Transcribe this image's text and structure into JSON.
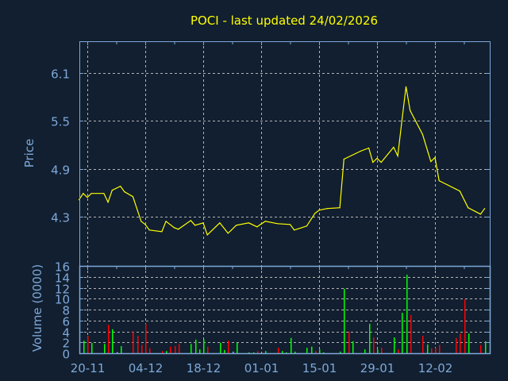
{
  "chart_data": [
    {
      "type": "line",
      "title": "POCI - last updated 24/02/2026",
      "xlabel": "",
      "ylabel": "Price",
      "ylim": [
        3.68,
        6.5
      ],
      "xlim": [
        "2025-11-18",
        "2026-02-25"
      ],
      "yticks": [
        "4.3",
        "4.9",
        "5.5",
        "6.1"
      ],
      "grid": true,
      "line_color": "#ffff00",
      "points": [
        [
          "2025-11-18",
          4.51
        ],
        [
          "2025-11-19",
          4.59
        ],
        [
          "2025-11-20",
          4.54
        ],
        [
          "2025-11-21",
          4.59
        ],
        [
          "2025-11-24",
          4.59
        ],
        [
          "2025-11-25",
          4.48
        ],
        [
          "2025-11-26",
          4.63
        ],
        [
          "2025-11-28",
          4.68
        ],
        [
          "2025-11-29",
          4.61
        ],
        [
          "2025-12-01",
          4.55
        ],
        [
          "2025-12-03",
          4.24
        ],
        [
          "2025-12-04",
          4.2
        ],
        [
          "2025-12-05",
          4.13
        ],
        [
          "2025-12-08",
          4.11
        ],
        [
          "2025-12-09",
          4.24
        ],
        [
          "2025-12-11",
          4.16
        ],
        [
          "2025-12-12",
          4.14
        ],
        [
          "2025-12-15",
          4.25
        ],
        [
          "2025-12-16",
          4.19
        ],
        [
          "2025-12-18",
          4.22
        ],
        [
          "2025-12-19",
          4.07
        ],
        [
          "2025-12-22",
          4.22
        ],
        [
          "2025-12-24",
          4.09
        ],
        [
          "2025-12-26",
          4.19
        ],
        [
          "2025-12-29",
          4.22
        ],
        [
          "2025-12-31",
          4.17
        ],
        [
          "2026-01-02",
          4.24
        ],
        [
          "2026-01-05",
          4.21
        ],
        [
          "2026-01-08",
          4.2
        ],
        [
          "2026-01-09",
          4.13
        ],
        [
          "2026-01-12",
          4.18
        ],
        [
          "2026-01-14",
          4.34
        ],
        [
          "2026-01-15",
          4.38
        ],
        [
          "2026-01-17",
          4.4
        ],
        [
          "2026-01-20",
          4.41
        ],
        [
          "2026-01-21",
          5.02
        ],
        [
          "2026-01-25",
          5.12
        ],
        [
          "2026-01-27",
          5.16
        ],
        [
          "2026-01-28",
          4.98
        ],
        [
          "2026-01-29",
          5.03
        ],
        [
          "2026-01-30",
          4.98
        ],
        [
          "2026-02-02",
          5.17
        ],
        [
          "2026-02-03",
          5.06
        ],
        [
          "2026-02-04",
          5.5
        ],
        [
          "2026-02-05",
          5.93
        ],
        [
          "2026-02-06",
          5.63
        ],
        [
          "2026-02-09",
          5.33
        ],
        [
          "2026-02-11",
          4.99
        ],
        [
          "2026-02-12",
          5.04
        ],
        [
          "2026-02-13",
          4.75
        ],
        [
          "2026-02-18",
          4.62
        ],
        [
          "2026-02-20",
          4.41
        ],
        [
          "2026-02-23",
          4.33
        ],
        [
          "2026-02-24",
          4.4
        ]
      ]
    },
    {
      "type": "bar",
      "xlabel": "",
      "ylabel": "Volume (0000)",
      "ylim": [
        0,
        16
      ],
      "yticks": [
        "0",
        "2",
        "4",
        "6",
        "8",
        "10",
        "12",
        "14",
        "16"
      ],
      "xticks": [
        {
          "date": "2025-11-20",
          "label": "20-11"
        },
        {
          "date": "2025-12-04",
          "label": "04-12"
        },
        {
          "date": "2025-12-18",
          "label": "18-12"
        },
        {
          "date": "2026-01-01",
          "label": "01-01"
        },
        {
          "date": "2026-01-15",
          "label": "15-01"
        },
        {
          "date": "2026-01-29",
          "label": "29-01"
        },
        {
          "date": "2026-02-12",
          "label": "12-02"
        }
      ],
      "grid": true,
      "colors": {
        "up": "#00ff00",
        "down": "#ff0000",
        "flat": "#8fb0d8"
      },
      "bars": [
        [
          "2025-11-19",
          2.3,
          "up"
        ],
        [
          "2025-11-20",
          3.2,
          "down"
        ],
        [
          "2025-11-21",
          1.9,
          "up"
        ],
        [
          "2025-11-24",
          1.7,
          "up"
        ],
        [
          "2025-11-25",
          5.2,
          "down"
        ],
        [
          "2025-11-26",
          4.4,
          "up"
        ],
        [
          "2025-11-27",
          0.2,
          "flat"
        ],
        [
          "2025-11-28",
          1.3,
          "up"
        ],
        [
          "2025-12-01",
          4.0,
          "down"
        ],
        [
          "2025-12-02",
          3.2,
          "down"
        ],
        [
          "2025-12-03",
          1.5,
          "down"
        ],
        [
          "2025-12-04",
          5.4,
          "down"
        ],
        [
          "2025-12-05",
          0.9,
          "down"
        ],
        [
          "2025-12-08",
          0.4,
          "down"
        ],
        [
          "2025-12-09",
          0.4,
          "up"
        ],
        [
          "2025-12-10",
          1.2,
          "down"
        ],
        [
          "2025-12-11",
          1.3,
          "down"
        ],
        [
          "2025-12-12",
          1.7,
          "down"
        ],
        [
          "2025-12-15",
          1.7,
          "up"
        ],
        [
          "2025-12-16",
          2.5,
          "up"
        ],
        [
          "2025-12-17",
          0.7,
          "up"
        ],
        [
          "2025-12-18",
          2.5,
          "up"
        ],
        [
          "2025-12-19",
          1.2,
          "down"
        ],
        [
          "2025-12-22",
          1.9,
          "up"
        ],
        [
          "2025-12-23",
          0.6,
          "up"
        ],
        [
          "2025-12-24",
          2.3,
          "down"
        ],
        [
          "2025-12-25",
          0.3,
          "flat"
        ],
        [
          "2025-12-26",
          1.9,
          "up"
        ],
        [
          "2025-12-29",
          0.15,
          "up"
        ],
        [
          "2025-12-30",
          0.15,
          "up"
        ],
        [
          "2025-12-31",
          0.4,
          "down"
        ],
        [
          "2026-01-02",
          0.4,
          "up"
        ],
        [
          "2026-01-05",
          1.0,
          "down"
        ],
        [
          "2026-01-06",
          0.4,
          "up"
        ],
        [
          "2026-01-07",
          0.15,
          "up"
        ],
        [
          "2026-01-08",
          2.8,
          "up"
        ],
        [
          "2026-01-09",
          0.3,
          "up"
        ],
        [
          "2026-01-12",
          1.0,
          "up"
        ],
        [
          "2026-01-13",
          1.2,
          "up"
        ],
        [
          "2026-01-14",
          0.4,
          "down"
        ],
        [
          "2026-01-15",
          0.7,
          "up"
        ],
        [
          "2026-01-16",
          0.15,
          "up"
        ],
        [
          "2026-01-20",
          0.3,
          "up"
        ],
        [
          "2026-01-21",
          11.8,
          "up"
        ],
        [
          "2026-01-22",
          4.0,
          "down"
        ],
        [
          "2026-01-23",
          2.2,
          "up"
        ],
        [
          "2026-01-26",
          0.7,
          "up"
        ],
        [
          "2026-01-27",
          5.4,
          "up"
        ],
        [
          "2026-01-28",
          2.9,
          "down"
        ],
        [
          "2026-01-29",
          0.7,
          "up"
        ],
        [
          "2026-01-30",
          1.0,
          "down"
        ],
        [
          "2026-02-02",
          2.9,
          "up"
        ],
        [
          "2026-02-03",
          0.7,
          "down"
        ],
        [
          "2026-02-04",
          7.4,
          "up"
        ],
        [
          "2026-02-05",
          14.4,
          "up"
        ],
        [
          "2026-02-06",
          7.0,
          "down"
        ],
        [
          "2026-02-09",
          3.2,
          "down"
        ],
        [
          "2026-02-10",
          1.6,
          "up"
        ],
        [
          "2026-02-11",
          0.9,
          "down"
        ],
        [
          "2026-02-12",
          1.0,
          "down"
        ],
        [
          "2026-02-13",
          1.5,
          "down"
        ],
        [
          "2026-02-17",
          2.8,
          "down"
        ],
        [
          "2026-02-18",
          3.6,
          "down"
        ],
        [
          "2026-02-19",
          9.9,
          "down"
        ],
        [
          "2026-02-20",
          3.6,
          "up"
        ],
        [
          "2026-02-23",
          1.5,
          "down"
        ],
        [
          "2026-02-24",
          2.2,
          "up"
        ]
      ]
    }
  ],
  "style": {
    "background": "#111f30",
    "axis": "#7fa8d8",
    "grid": "#b4b4b4",
    "title": "#ffff00"
  }
}
